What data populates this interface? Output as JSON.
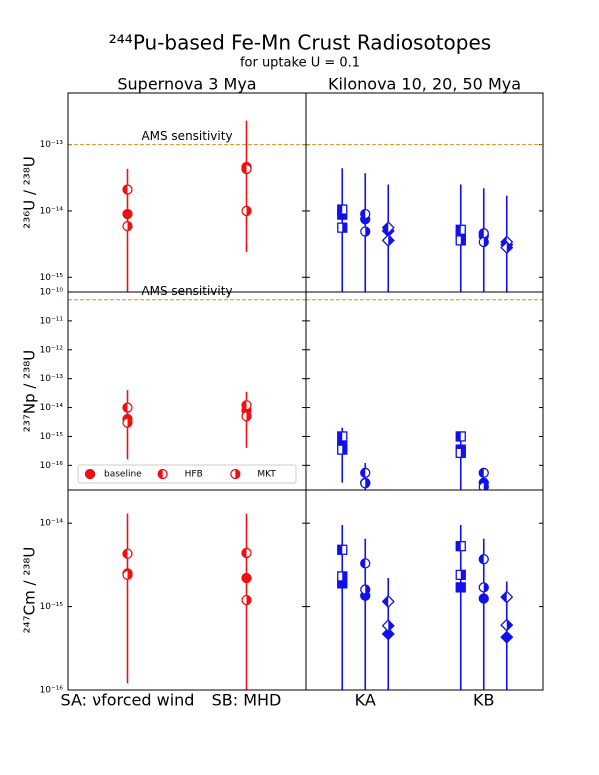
{
  "figure": {
    "title": "²⁴⁴Pu-based Fe-Mn Crust Radiosotopes",
    "subtitle": "for uptake U = 0.1",
    "headers": [
      {
        "text": "Supernova 3 Mya",
        "color": "#ee1111"
      },
      {
        "text": "Kilonova 10, 20, 50 Mya",
        "color": "#1111ee"
      }
    ]
  },
  "chart_data": [
    {
      "type": "errorbar",
      "ylabel": "²³⁶U / ²³⁸U",
      "log": true,
      "ylim": [
        6e-16,
        6e-13
      ],
      "yticks": [
        {
          "value": 1e-15,
          "label": "10⁻¹⁵"
        },
        {
          "value": 1e-14,
          "label": "10⁻¹⁴"
        },
        {
          "value": 1e-13,
          "label": "10⁻¹³"
        }
      ],
      "hline": {
        "value": 1e-13,
        "label": "AMS sensitivity",
        "color": "#c8961e"
      },
      "panels": [
        {
          "color": "#ee1111",
          "markers": [
            "circle",
            "circle"
          ],
          "series": [
            {
              "fillstyle": "full",
              "values": [
                9e-15,
                4.6e-14
              ]
            },
            {
              "fillstyle": "left",
              "values": [
                2.1e-14,
                4.3e-14
              ]
            },
            {
              "fillstyle": "right",
              "values": [
                5.9e-15,
                1e-14
              ]
            }
          ],
          "err_low": [
            5e-16,
            2.4e-15
          ],
          "err_high": [
            4.3e-14,
            2.3e-13
          ]
        },
        {
          "color": "#1111ee",
          "markers": [
            "square",
            "circle",
            "diamond",
            "square",
            "circle",
            "diamond"
          ],
          "series": [
            {
              "fillstyle": "full",
              "values": [
                8.8e-15,
                7.5e-15,
                5e-15,
                4.4e-15,
                4.2e-15,
                3.1e-15
              ]
            },
            {
              "fillstyle": "left",
              "values": [
                1.05e-14,
                9e-15,
                5.6e-15,
                5.2e-15,
                4.6e-15,
                3.4e-15
              ]
            },
            {
              "fillstyle": "right",
              "values": [
                5.6e-15,
                4.9e-15,
                3.6e-15,
                3.6e-15,
                3.4e-15,
                2.8e-15
              ]
            }
          ],
          "err_low": [
            5e-16,
            5e-16,
            5e-16,
            5e-16,
            5e-16,
            5e-16
          ],
          "err_high": [
            4.4e-14,
            3.7e-14,
            2.5e-14,
            2.5e-14,
            2.2e-14,
            1.7e-14
          ]
        }
      ]
    },
    {
      "type": "errorbar",
      "ylabel": "²³⁷Np / ²³⁸U",
      "log": true,
      "ylim": [
        1.4e-17,
        1e-10
      ],
      "yticks": [
        {
          "value": 1e-16,
          "label": "10⁻¹⁶"
        },
        {
          "value": 1e-15,
          "label": "10⁻¹⁵"
        },
        {
          "value": 1e-14,
          "label": "10⁻¹⁴"
        },
        {
          "value": 1e-13,
          "label": "10⁻¹³"
        },
        {
          "value": 1e-12,
          "label": "10⁻¹²"
        },
        {
          "value": 1e-11,
          "label": "10⁻¹¹"
        },
        {
          "value": 1e-10,
          "label": "10⁻¹⁰"
        }
      ],
      "hline": {
        "value": 5.4e-11,
        "label": "AMS sensitivity",
        "color": "#c8961e"
      },
      "legend": "lower center",
      "panels": [
        {
          "color": "#ee1111",
          "markers": [
            "circle",
            "circle"
          ],
          "series": [
            {
              "name": "baseline",
              "fillstyle": "full",
              "values": [
                4e-15,
                8e-15
              ]
            },
            {
              "name": "HFB",
              "fillstyle": "left",
              "values": [
                1e-14,
                1.2e-14
              ]
            },
            {
              "name": "MKT",
              "fillstyle": "right",
              "values": [
                3e-15,
                5e-15
              ]
            }
          ],
          "err_low": [
            1.6e-16,
            4e-16
          ],
          "err_high": [
            4e-14,
            3.5e-14
          ]
        },
        {
          "color": "#1111ee",
          "markers": [
            "square",
            "circle",
            "diamond",
            "square",
            "circle",
            "diamond"
          ],
          "series": [
            {
              "fillstyle": "full",
              "values": [
                4.5e-16,
                2.5e-17,
                null,
                3.5e-16,
                2.5e-17,
                null
              ]
            },
            {
              "fillstyle": "left",
              "values": [
                1e-15,
                5.5e-17,
                null,
                1e-15,
                5.5e-17,
                null
              ]
            },
            {
              "fillstyle": "right",
              "values": [
                3.5e-16,
                2.4e-17,
                null,
                2.7e-16,
                1.8e-17,
                null
              ]
            }
          ],
          "err_low": [
            2.5e-17,
            1e-17,
            null,
            1.4e-17,
            1e-17,
            null
          ],
          "err_high": [
            2e-15,
            1.2e-16,
            null,
            1.5e-15,
            8e-17,
            null
          ]
        }
      ]
    },
    {
      "type": "errorbar",
      "ylabel": "²⁴⁷Cm / ²³⁸U",
      "log": true,
      "ylim": [
        1e-16,
        2.5e-14
      ],
      "yticks": [
        {
          "value": 1e-16,
          "label": "10⁻¹⁶"
        },
        {
          "value": 1e-15,
          "label": "10⁻¹⁵"
        },
        {
          "value": 1e-14,
          "label": "10⁻¹⁴"
        }
      ],
      "panels": [
        {
          "color": "#ee1111",
          "markers": [
            "circle",
            "circle"
          ],
          "categories": [
            "SA: νforced wind",
            "SB: MHD"
          ],
          "series": [
            {
              "fillstyle": "full",
              "values": [
                2.5e-15,
                2.2e-15
              ]
            },
            {
              "fillstyle": "left",
              "values": [
                4.3e-15,
                4.4e-15
              ]
            },
            {
              "fillstyle": "right",
              "values": [
                2.4e-15,
                1.2e-15
              ]
            }
          ],
          "err_low": [
            1.2e-16,
            1e-16
          ],
          "err_high": [
            1.3e-14,
            1.3e-14
          ]
        },
        {
          "color": "#1111ee",
          "markers": [
            "square",
            "circle",
            "diamond",
            "square",
            "circle",
            "diamond"
          ],
          "categories": [
            null,
            "KA",
            null,
            null,
            "KB",
            null
          ],
          "series": [
            {
              "fillstyle": "full",
              "values": [
                1.9e-15,
                1.35e-15,
                4.7e-16,
                1.7e-15,
                1.25e-15,
                4.3e-16
              ]
            },
            {
              "fillstyle": "left",
              "values": [
                4.8e-15,
                3.3e-15,
                1.15e-15,
                5.3e-15,
                3.7e-15,
                1.3e-15
              ]
            },
            {
              "fillstyle": "right",
              "values": [
                2.3e-15,
                1.6e-15,
                5.9e-16,
                2.4e-15,
                1.7e-15,
                6e-16
              ]
            }
          ],
          "err_low": [
            1e-16,
            1e-16,
            1e-16,
            1e-16,
            1e-16,
            1e-16
          ],
          "err_high": [
            9.5e-15,
            6.5e-15,
            2.2e-15,
            9.5e-15,
            6.5e-15,
            2e-15
          ]
        }
      ]
    }
  ]
}
